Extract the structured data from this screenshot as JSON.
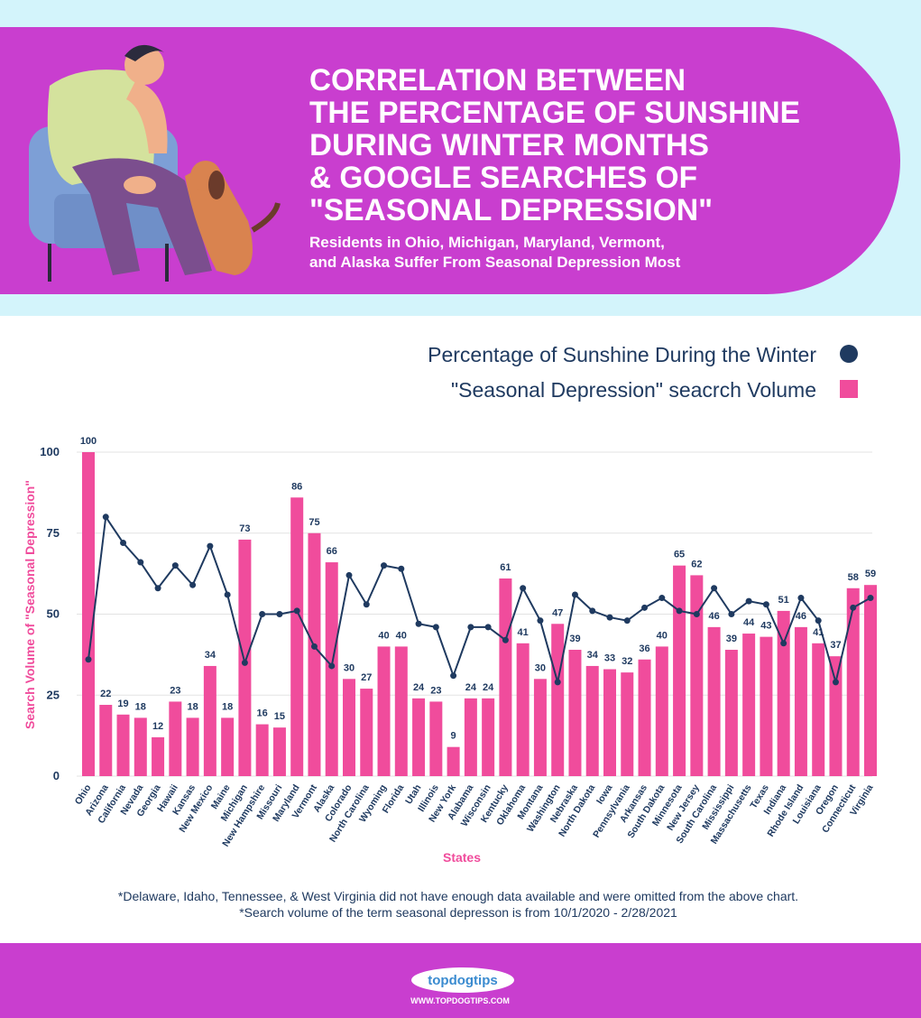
{
  "header": {
    "title": [
      "CORRELATION BETWEEN",
      "THE PERCENTAGE OF SUNSHINE",
      "DURING WINTER MONTHS",
      "& GOOGLE SEARCHES OF",
      "\"SEASONAL DEPRESSION\""
    ],
    "subtitle": [
      "Residents in Ohio, Michigan, Maryland, Vermont,",
      "and Alaska Suffer From Seasonal Depression Most"
    ]
  },
  "chart_data": {
    "type": "bar",
    "y_label": "Search Volume of \"Seasonal Depression\"",
    "x_label": "States",
    "categories": [
      "Ohio",
      "Arizona",
      "California",
      "Nevada",
      "Georgia",
      "Hawaii",
      "Kansas",
      "New Mexico",
      "Maine",
      "Michigan",
      "New Hampshire",
      "Missouri",
      "Maryland",
      "Vermont",
      "Alaska",
      "Colorado",
      "North Carolina",
      "Wyoming",
      "Florida",
      "Utah",
      "Illinois",
      "New York",
      "Alabama",
      "Wisconsin",
      "Kentucky",
      "Oklahoma",
      "Montana",
      "Washington",
      "Nebraska",
      "North Dakota",
      "Iowa",
      "Pennsylvania",
      "Arkansas",
      "South Dakota",
      "Minnesota",
      "New Jersey",
      "South Carolina",
      "Mississippi",
      "Massachusetts",
      "Texas",
      "Indiana",
      "Rhode Island",
      "Louisiana",
      "Oregon",
      "Connecticut",
      "Virginia"
    ],
    "series": [
      {
        "name": "Percentage of Sunshine During the Winter",
        "type": "line",
        "color": "#1f3a60",
        "values": [
          36,
          80,
          72,
          66,
          58,
          65,
          59,
          71,
          56,
          35,
          50,
          50,
          51,
          40,
          34,
          62,
          53,
          65,
          64,
          47,
          46,
          31,
          46,
          46,
          42,
          58,
          48,
          29,
          56,
          51,
          49,
          48,
          52,
          55,
          51,
          50,
          58,
          50,
          54,
          53,
          41,
          55,
          48,
          29,
          52,
          55
        ]
      },
      {
        "name": "\"Seasonal Depression\" seacrch Volume",
        "type": "bar",
        "color": "#f04c9c",
        "values": [
          100,
          22,
          19,
          18,
          12,
          23,
          18,
          34,
          18,
          73,
          16,
          15,
          86,
          75,
          66,
          30,
          27,
          40,
          40,
          24,
          23,
          9,
          24,
          24,
          61,
          41,
          30,
          47,
          39,
          34,
          33,
          32,
          36,
          40,
          65,
          62,
          46,
          39,
          44,
          43,
          51,
          46,
          41,
          37,
          58,
          59
        ]
      }
    ],
    "ylim": [
      0,
      100
    ],
    "yticks": [
      0,
      25,
      50,
      75,
      100
    ],
    "grid": true
  },
  "notes": [
    "*Delaware, Idaho, Tennessee, & West Virginia did not have enough data available and were omitted from the above chart.",
    "*Search volume of the term seasonal depresson is from 10/1/2020 - 2/28/2021"
  ],
  "footer": {
    "brand": "topdogtips",
    "url": "WWW.TOPDOGTIPS.COM"
  }
}
